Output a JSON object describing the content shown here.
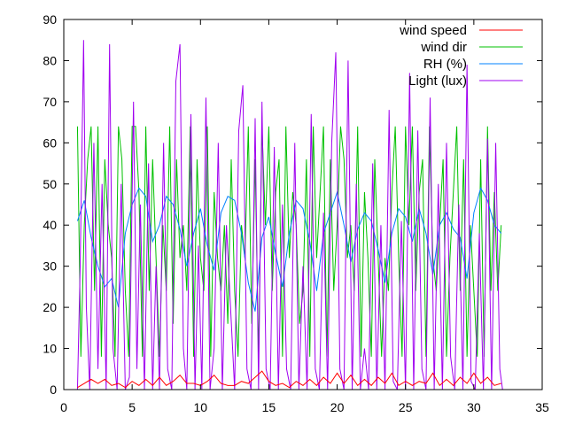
{
  "chart_data": {
    "type": "line",
    "title": "",
    "xlabel": "",
    "ylabel": "",
    "xlim": [
      0,
      35
    ],
    "ylim": [
      0,
      90
    ],
    "x_ticks": [
      0,
      5,
      10,
      15,
      20,
      25,
      30,
      35
    ],
    "y_ticks": [
      0,
      10,
      20,
      30,
      40,
      50,
      60,
      70,
      80,
      90
    ],
    "grid": false,
    "legend_position": "top-right",
    "x_range_of_data": [
      1.0,
      32.1
    ],
    "series": [
      {
        "name": "wind speed",
        "color": "#ff0000",
        "x": [
          1.0,
          1.5,
          2.0,
          2.5,
          3.0,
          3.5,
          4.0,
          4.5,
          5.0,
          5.5,
          6.0,
          6.5,
          7.0,
          7.5,
          8.0,
          8.5,
          9.0,
          9.5,
          10.0,
          10.5,
          11.0,
          11.5,
          12.0,
          12.5,
          13.0,
          13.5,
          14.0,
          14.5,
          15.0,
          15.5,
          16.0,
          16.5,
          17.0,
          17.5,
          18.0,
          18.5,
          19.0,
          19.5,
          20.0,
          20.5,
          21.0,
          21.5,
          22.0,
          22.5,
          23.0,
          23.5,
          24.0,
          24.5,
          25.0,
          25.5,
          26.0,
          26.5,
          27.0,
          27.5,
          28.0,
          28.5,
          29.0,
          29.5,
          30.0,
          30.5,
          31.0,
          31.5,
          32.0
        ],
        "values": [
          0.5,
          1.5,
          2.5,
          1.5,
          2.5,
          1,
          1.5,
          0.5,
          2,
          1,
          2.5,
          1,
          3,
          1,
          2,
          3.5,
          1.5,
          1.5,
          1,
          2,
          3.5,
          1.5,
          1,
          1,
          2,
          1.5,
          3,
          4.5,
          2,
          1,
          1.5,
          0.5,
          2,
          1,
          2.5,
          1,
          3,
          1.5,
          4,
          1.5,
          3.5,
          1,
          2.5,
          1,
          3,
          1.5,
          4,
          1,
          2,
          1,
          2,
          1.5,
          4,
          1,
          2.5,
          1,
          3,
          1.5,
          4,
          1.5,
          3,
          1,
          1.5
        ]
      },
      {
        "name": "wind dir",
        "color": "#00c000",
        "x": [
          1.0,
          1.25,
          1.5,
          1.75,
          2.0,
          2.25,
          2.5,
          2.75,
          3.0,
          3.25,
          3.5,
          3.75,
          4.0,
          4.25,
          4.5,
          4.75,
          5.0,
          5.25,
          5.5,
          5.75,
          6.0,
          6.25,
          6.5,
          6.75,
          7.0,
          7.25,
          7.5,
          7.75,
          8.0,
          8.25,
          8.5,
          8.75,
          9.0,
          9.25,
          9.5,
          9.75,
          10.0,
          10.25,
          10.5,
          10.75,
          11.0,
          11.25,
          11.5,
          11.75,
          12.0,
          12.25,
          12.5,
          12.75,
          13.0,
          13.25,
          13.5,
          13.75,
          14.0,
          14.25,
          14.5,
          14.75,
          15.0,
          15.25,
          15.5,
          15.75,
          16.0,
          16.25,
          16.5,
          16.75,
          17.0,
          17.25,
          17.5,
          17.75,
          18.0,
          18.25,
          18.5,
          18.75,
          19.0,
          19.25,
          19.5,
          19.75,
          20.0,
          20.25,
          20.5,
          20.75,
          21.0,
          21.25,
          21.5,
          21.75,
          22.0,
          22.25,
          22.5,
          22.75,
          23.0,
          23.25,
          23.5,
          23.75,
          24.0,
          24.25,
          24.5,
          24.75,
          25.0,
          25.25,
          25.5,
          25.75,
          26.0,
          26.25,
          26.5,
          26.75,
          27.0,
          27.25,
          27.5,
          27.75,
          28.0,
          28.25,
          28.5,
          28.75,
          29.0,
          29.25,
          29.5,
          29.75,
          30.0,
          30.25,
          30.5,
          30.75,
          31.0,
          31.25,
          31.5,
          31.75,
          32.0
        ],
        "values": [
          64,
          8,
          40,
          56,
          64,
          24,
          64,
          8,
          56,
          40,
          32,
          8,
          64,
          56,
          24,
          8,
          64,
          64,
          48,
          8,
          64,
          24,
          56,
          32,
          8,
          40,
          24,
          64,
          16,
          56,
          32,
          40,
          24,
          64,
          8,
          56,
          32,
          24,
          64,
          8,
          48,
          32,
          24,
          40,
          16,
          56,
          24,
          8,
          40,
          32,
          64,
          16,
          56,
          8,
          64,
          40,
          64,
          24,
          48,
          56,
          8,
          64,
          32,
          48,
          40,
          16,
          24,
          56,
          8,
          64,
          32,
          48,
          64,
          8,
          56,
          24,
          40,
          64,
          56,
          32,
          40,
          24,
          64,
          8,
          48,
          32,
          8,
          56,
          32,
          8,
          32,
          24,
          48,
          64,
          32,
          8,
          64,
          40,
          64,
          24,
          48,
          56,
          8,
          64,
          32,
          24,
          40,
          56,
          8,
          32,
          48,
          64,
          24,
          56,
          8,
          40,
          24,
          8,
          56,
          8,
          64,
          24,
          48,
          24,
          40
        ]
      },
      {
        "name": "RH (%)",
        "color": "#0080ff",
        "x": [
          1.0,
          1.5,
          2.0,
          2.5,
          3.0,
          3.5,
          4.0,
          4.5,
          5.0,
          5.5,
          6.0,
          6.5,
          7.0,
          7.5,
          8.0,
          8.5,
          9.0,
          9.5,
          10.0,
          10.5,
          11.0,
          11.5,
          12.0,
          12.5,
          13.0,
          13.5,
          14.0,
          14.5,
          15.0,
          15.5,
          16.0,
          16.5,
          17.0,
          17.5,
          18.0,
          18.5,
          19.0,
          19.5,
          20.0,
          20.5,
          21.0,
          21.5,
          22.0,
          22.5,
          23.0,
          23.5,
          24.0,
          24.5,
          25.0,
          25.5,
          26.0,
          26.5,
          27.0,
          27.5,
          28.0,
          28.5,
          29.0,
          29.5,
          30.0,
          30.5,
          31.0,
          31.5,
          32.0
        ],
        "values": [
          41,
          46,
          37,
          30,
          25,
          27,
          20,
          38,
          45,
          49,
          47,
          36,
          40,
          47,
          45,
          39,
          30,
          38,
          44,
          35,
          29,
          43,
          47,
          46,
          38,
          26,
          19,
          37,
          42,
          33,
          25,
          38,
          46,
          44,
          36,
          24,
          38,
          43,
          48,
          40,
          31,
          39,
          43,
          41,
          34,
          26,
          38,
          44,
          42,
          36,
          44,
          38,
          28,
          40,
          43,
          39,
          37,
          27,
          43,
          49,
          46,
          40,
          38
        ]
      },
      {
        "name": "Light (lux)",
        "color": "#a000f0",
        "x": [
          1.0,
          1.2,
          1.45,
          1.65,
          1.9,
          2.2,
          2.5,
          2.8,
          3.1,
          3.35,
          3.6,
          3.9,
          4.2,
          4.5,
          4.8,
          5.1,
          5.35,
          5.6,
          5.9,
          6.2,
          6.5,
          6.75,
          7.0,
          7.3,
          7.6,
          7.9,
          8.2,
          8.5,
          8.75,
          9.0,
          9.3,
          9.6,
          9.85,
          10.1,
          10.4,
          10.7,
          11.0,
          11.3,
          11.6,
          11.9,
          12.2,
          12.5,
          12.8,
          13.1,
          13.4,
          13.7,
          14.0,
          14.25,
          14.5,
          14.8,
          15.1,
          15.4,
          15.7,
          16.0,
          16.3,
          16.6,
          16.9,
          17.2,
          17.5,
          17.8,
          18.1,
          18.4,
          18.7,
          19.0,
          19.3,
          19.6,
          19.9,
          20.2,
          20.5,
          20.8,
          21.1,
          21.4,
          21.7,
          22.0,
          22.3,
          22.6,
          22.9,
          23.2,
          23.5,
          23.8,
          24.1,
          24.4,
          24.7,
          25.0,
          25.3,
          25.6,
          25.9,
          26.2,
          26.5,
          26.8,
          27.1,
          27.4,
          27.7,
          28.0,
          28.3,
          28.6,
          28.9,
          29.2,
          29.5,
          29.8,
          30.1,
          30.4,
          30.7,
          31.0,
          31.3,
          31.6,
          31.9,
          32.1
        ],
        "values": [
          0,
          30,
          85,
          20,
          0,
          60,
          5,
          50,
          0,
          84,
          10,
          0,
          50,
          0,
          3,
          70,
          5,
          45,
          0,
          55,
          0,
          30,
          0,
          60,
          5,
          0,
          75,
          84,
          10,
          0,
          67,
          0,
          35,
          0,
          71,
          0,
          10,
          60,
          0,
          40,
          20,
          0,
          63,
          74,
          5,
          0,
          66,
          0,
          70,
          5,
          0,
          59,
          0,
          45,
          5,
          0,
          60,
          0,
          30,
          0,
          67,
          5,
          0,
          43,
          0,
          60,
          82,
          5,
          0,
          80,
          0,
          50,
          0,
          10,
          0,
          55,
          0,
          40,
          0,
          68,
          2,
          0,
          41,
          0,
          77,
          0,
          63,
          5,
          0,
          71,
          0,
          50,
          0,
          60,
          8,
          0,
          45,
          0,
          79,
          2,
          0,
          38,
          0,
          61,
          0,
          60,
          5,
          0
        ]
      }
    ]
  }
}
